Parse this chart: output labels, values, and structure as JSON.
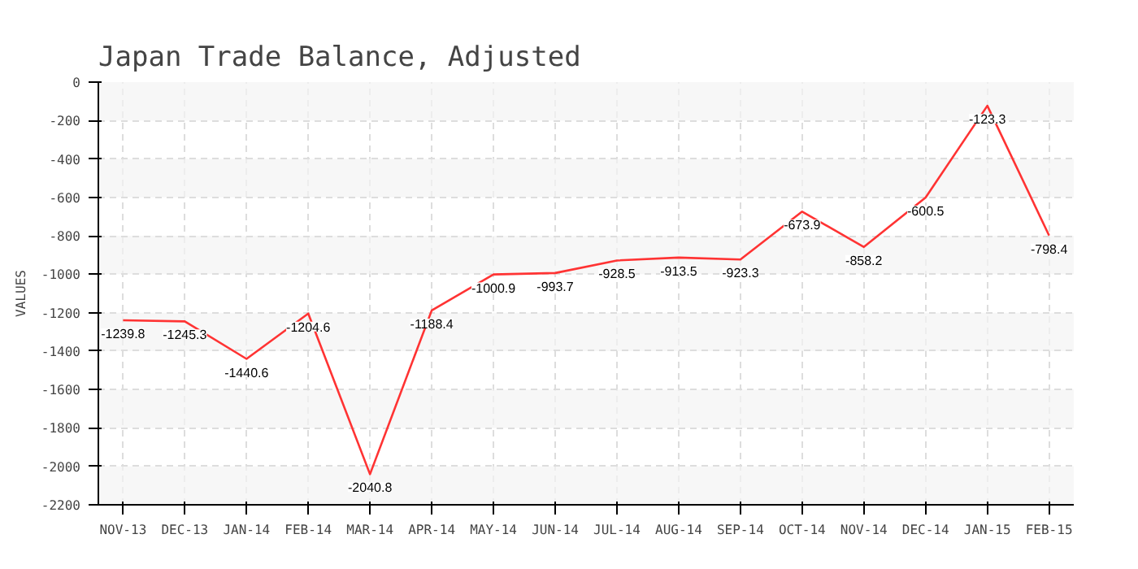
{
  "chart_data": {
    "type": "line",
    "title": "Japan Trade Balance, Adjusted",
    "ylabel": "VALUES",
    "categories": [
      "NOV-13",
      "DEC-13",
      "JAN-14",
      "FEB-14",
      "MAR-14",
      "APR-14",
      "MAY-14",
      "JUN-14",
      "JUL-14",
      "AUG-14",
      "SEP-14",
      "OCT-14",
      "NOV-14",
      "DEC-14",
      "JAN-15",
      "FEB-15"
    ],
    "series": [
      {
        "color": "#ff3333",
        "values": [
          -1239.8,
          -1245.3,
          -1440.6,
          -1204.6,
          -2040.8,
          -1188.4,
          -1000.9,
          -993.7,
          -928.5,
          -913.5,
          -923.3,
          -673.9,
          -858.2,
          -600.5,
          -123.3,
          -798.4
        ]
      }
    ],
    "ylim": [
      -2200,
      0
    ],
    "yticks": [
      0,
      -200,
      -400,
      -600,
      -800,
      -1000,
      -1200,
      -1400,
      -1600,
      -1800,
      -2000,
      -2200
    ],
    "grid": true,
    "data_labels": true,
    "line_style": "solid",
    "marker": "none"
  }
}
